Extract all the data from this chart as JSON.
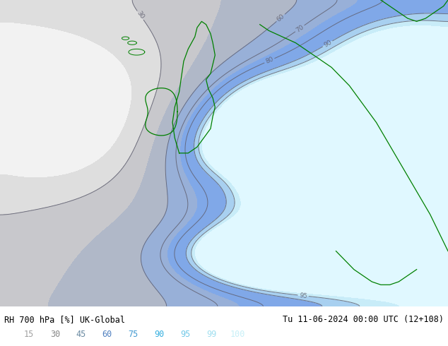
{
  "title_left": "RH 700 hPa [%] UK-Global",
  "title_right": "Tu 11-06-2024 00:00 UTC (12+108)",
  "colorbar_labels": [
    "15",
    "30",
    "45",
    "60",
    "75",
    "90",
    "95",
    "99",
    "100"
  ],
  "fill_colors": [
    "#f2f2f2",
    "#dedede",
    "#c8c8cc",
    "#b0b8c8",
    "#98b0d8",
    "#80a8e8",
    "#a8d0f0",
    "#c8ecf8",
    "#e0f8ff"
  ],
  "contour_levels": [
    30,
    60,
    70,
    80,
    90,
    95
  ],
  "contour_color": "#606070",
  "bg_color": "#ffffff",
  "label_colors": [
    "#a0a0a0",
    "#888888",
    "#6888a0",
    "#5080c0",
    "#4098d0",
    "#38b0e0",
    "#70c8e8",
    "#a0dff0",
    "#c8f0f8"
  ],
  "fig_width": 6.34,
  "fig_height": 4.9,
  "dpi": 100
}
